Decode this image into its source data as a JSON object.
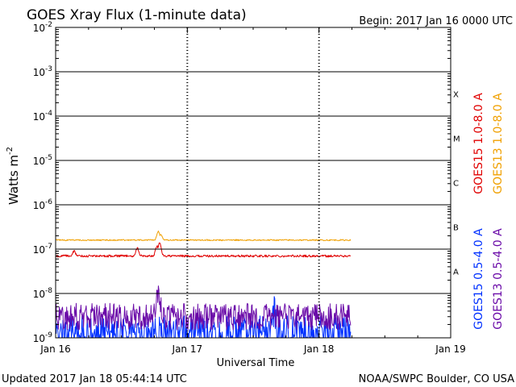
{
  "chart_data": {
    "type": "line",
    "title": "GOES Xray Flux (1-minute data)",
    "begin_label": "Begin:  2017 Jan 16 0000 UTC",
    "xlabel": "Universal Time",
    "ylabel_main": "Watts m",
    "ylabel_exp": "-2",
    "y_scale": "log",
    "ylim_exp": [
      -9,
      -2
    ],
    "y_ticks": [
      {
        "exp": "-2",
        "value": -2
      },
      {
        "exp": "-3",
        "value": -3
      },
      {
        "exp": "-4",
        "value": -4
      },
      {
        "exp": "-5",
        "value": -5
      },
      {
        "exp": "-6",
        "value": -6
      },
      {
        "exp": "-7",
        "value": -7
      },
      {
        "exp": "-8",
        "value": -8
      },
      {
        "exp": "-9",
        "value": -9
      }
    ],
    "y_tick_base": "10",
    "x_range_days": [
      0,
      3
    ],
    "x_ticks": [
      {
        "label": "Jan 16",
        "day": 0
      },
      {
        "label": "Jan 17",
        "day": 1
      },
      {
        "label": "Jan 18",
        "day": 2
      },
      {
        "label": "Jan 19",
        "day": 3
      }
    ],
    "flare_classes": [
      {
        "label": "X",
        "exp": -4
      },
      {
        "label": "M",
        "exp": -5
      },
      {
        "label": "C",
        "exp": -6
      },
      {
        "label": "B",
        "exp": -7
      },
      {
        "label": "A",
        "exp": -8
      }
    ],
    "data_end_day": 2.24,
    "series": [
      {
        "name": "GOES15 1.0-8.0 A",
        "color": "#e00000",
        "base": 7e-08,
        "noise": 0.025,
        "events": [
          {
            "day": 0.14,
            "peak": 9e-08
          },
          {
            "day": 0.62,
            "peak": 1.05e-07
          },
          {
            "day": 0.77,
            "peak": 1.15e-07
          },
          {
            "day": 0.79,
            "peak": 1.4e-07
          }
        ]
      },
      {
        "name": "GOES13 1.0-8.0 A",
        "color": "#f0a000",
        "base": 1.6e-07,
        "noise": 0.015,
        "events": [
          {
            "day": 0.78,
            "peak": 2.5e-07
          },
          {
            "day": 0.8,
            "peak": 2.1e-07
          }
        ]
      },
      {
        "name": "GOES15 0.5-4.0 A",
        "color": "#0030ff",
        "base": 1.4e-09,
        "noise": 0.35,
        "events": [
          {
            "day": 1.66,
            "peak": 4e-09
          }
        ]
      },
      {
        "name": "GOES13 0.5-4.0 A",
        "color": "#6a0aa8",
        "base": 3e-09,
        "noise": 0.3,
        "events": [
          {
            "day": 0.78,
            "peak": 1.2e-08
          }
        ]
      }
    ],
    "legend_right": [
      "GOES15 1.0-8.0 A",
      "GOES13 1.0-8.0 A"
    ],
    "legend_right_low": [
      "GOES15 0.5-4.0 A",
      "GOES13 0.5-4.0 A"
    ],
    "legend_placement": "right-vertical"
  },
  "footer": {
    "updated": "Updated 2017 Jan 18 05:44:14 UTC",
    "credit": "NOAA/SWPC Boulder, CO USA"
  }
}
